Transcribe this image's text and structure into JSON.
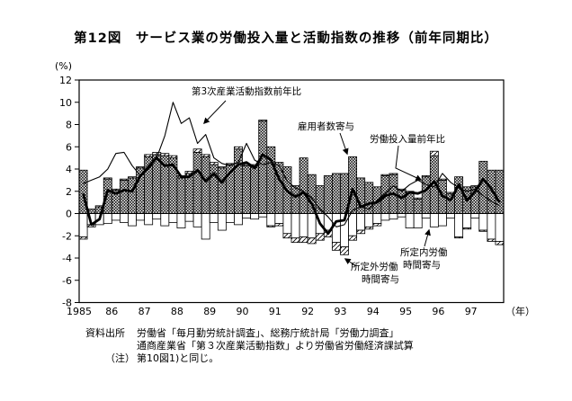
{
  "title": "第12図　サービス業の労働投入量と活動指数の推移（前年同期比）",
  "axes": {
    "y_unit": "(%)",
    "x_unit": "（年）"
  },
  "annotations": {
    "activity": "第3次産業活動指数前年比",
    "employment": "雇用者数寄与",
    "labor": "労働投入量前年比",
    "overtime_line1": "所定外労働",
    "overtime_line2": "時間寄与",
    "scheduled_line1": "所定内労働",
    "scheduled_line2": "時間寄与"
  },
  "notes": {
    "source_label": "資料出所",
    "source_line1": "労働省「毎月勤労統計調査」、総務庁統計局「労働力調査」",
    "source_line2": "通商産業省「第３次産業活動指数」より労働省労働経済課試算",
    "note_label": "（注）",
    "note_line": "第10図1)と同じ。"
  },
  "chart_data": {
    "type": "bar",
    "subtype": "stacked-quarterly-bars-with-two-line-overlays",
    "title": "サービス業の労働投入量と活動指数の推移（前年同期比）",
    "ylabel": "(%)",
    "ylim": [
      -8,
      12
    ],
    "yticks": [
      12,
      10,
      8,
      6,
      4,
      2,
      0,
      -2,
      -4,
      -6,
      -8
    ],
    "grid": false,
    "legend_position": "annotated-with-arrows-inside-plot",
    "x_year_labels": [
      "1985",
      "86",
      "87",
      "88",
      "89",
      "90",
      "91",
      "92",
      "93",
      "94",
      "95",
      "96",
      "97"
    ],
    "x_quarters": [
      "1985Q1",
      "1985Q2",
      "1985Q3",
      "1985Q4",
      "1986Q1",
      "1986Q2",
      "1986Q3",
      "1986Q4",
      "1987Q1",
      "1987Q2",
      "1987Q3",
      "1987Q4",
      "1988Q1",
      "1988Q2",
      "1988Q3",
      "1988Q4",
      "1989Q1",
      "1989Q2",
      "1989Q3",
      "1989Q4",
      "1990Q1",
      "1990Q2",
      "1990Q3",
      "1990Q4",
      "1991Q1",
      "1991Q2",
      "1991Q3",
      "1991Q4",
      "1992Q1",
      "1992Q2",
      "1992Q3",
      "1992Q4",
      "1993Q1",
      "1993Q2",
      "1993Q3",
      "1993Q4",
      "1994Q1",
      "1994Q2",
      "1994Q3",
      "1994Q4",
      "1995Q1",
      "1995Q2",
      "1995Q3",
      "1995Q4",
      "1996Q1",
      "1996Q2",
      "1996Q3",
      "1996Q4",
      "1997Q1",
      "1997Q2",
      "1997Q3",
      "1997Q4"
    ],
    "bar_series": [
      {
        "name": "雇用者数寄与",
        "pattern": "checker",
        "values": [
          3.9,
          0.4,
          0.6,
          3.1,
          2.1,
          3.0,
          3.2,
          4.1,
          5.1,
          5.3,
          5.2,
          5.0,
          3.2,
          3.6,
          5.5,
          5.1,
          4.4,
          4.1,
          4.4,
          5.8,
          4.3,
          4.3,
          8.3,
          6.0,
          4.6,
          4.2,
          2.5,
          5.0,
          3.5,
          2.5,
          3.4,
          3.6,
          3.6,
          5.1,
          3.2,
          2.8,
          2.4,
          3.4,
          3.5,
          2.1,
          1.9,
          1.3,
          3.3,
          5.2,
          3.0,
          1.8,
          3.3,
          2.4,
          2.4,
          4.7,
          3.9,
          3.9
        ]
      },
      {
        "name": "所定内労働時間寄与",
        "pattern": "plain-white",
        "values": [
          -2.1,
          -1.0,
          -1.0,
          -0.9,
          -0.6,
          -0.8,
          -1.1,
          -0.6,
          -1.0,
          -0.5,
          -1.1,
          -0.8,
          -1.3,
          -0.7,
          -1.2,
          -2.3,
          -0.8,
          -1.5,
          -0.8,
          -1.0,
          -0.4,
          -0.5,
          -0.3,
          -1.1,
          -0.9,
          -1.8,
          -2.2,
          -2.1,
          -2.2,
          -1.8,
          -1.5,
          -2.6,
          -3.0,
          -2.0,
          -1.5,
          -1.2,
          -0.9,
          -0.6,
          -0.5,
          -0.3,
          -1.3,
          -1.3,
          -0.4,
          -1.2,
          -1.1,
          -0.4,
          -2.1,
          -1.3,
          -0.4,
          -1.5,
          -2.3,
          -2.5
        ]
      },
      {
        "name": "所定外労働時間寄与",
        "pattern": "diagonal-hatch",
        "values": [
          -0.2,
          -0.2,
          0.1,
          0.1,
          0.1,
          0.1,
          0.1,
          0.1,
          0.2,
          0.2,
          0.2,
          0.2,
          0.2,
          0.2,
          0.3,
          0.2,
          0.2,
          0.1,
          0.1,
          0.2,
          0.1,
          0.1,
          0.1,
          -0.1,
          -0.2,
          -0.4,
          -0.4,
          -0.5,
          -0.5,
          -0.6,
          -0.6,
          -0.7,
          -0.7,
          -0.4,
          -0.3,
          -0.2,
          -0.2,
          0.1,
          0.1,
          0.1,
          0.1,
          0.1,
          0.1,
          0.4,
          0.1,
          0.1,
          -0.1,
          -0.1,
          0.1,
          -0.1,
          -0.2,
          -0.3
        ]
      }
    ],
    "line_series": [
      {
        "name": "第3次産業活動指数前年比",
        "style": "thin",
        "values": [
          2.7,
          3.0,
          3.3,
          4.0,
          5.4,
          5.5,
          4.3,
          3.4,
          4.0,
          5.0,
          7.0,
          10.0,
          8.1,
          8.6,
          6.3,
          7.1,
          5.0,
          4.5,
          4.3,
          4.6,
          6.3,
          4.8,
          4.4,
          4.6,
          4.3,
          2.9,
          2.3,
          2.0,
          1.4,
          0.4,
          -0.3,
          -1.2,
          -1.0,
          0.3,
          0.6,
          0.4,
          1.2,
          1.8,
          2.5,
          2.0,
          2.6,
          3.0,
          2.6,
          2.4,
          3.6,
          2.8,
          2.3,
          2.0,
          2.2,
          1.6,
          1.1,
          0.7
        ]
      },
      {
        "name": "労働投入量前年比",
        "style": "thick",
        "values": [
          1.8,
          -1.0,
          -0.5,
          2.1,
          1.8,
          2.1,
          2.0,
          3.4,
          4.2,
          5.0,
          4.3,
          4.4,
          3.3,
          3.3,
          3.9,
          2.9,
          3.6,
          2.8,
          3.7,
          4.4,
          4.6,
          4.1,
          5.3,
          4.8,
          3.1,
          2.0,
          1.5,
          1.9,
          0.9,
          -0.9,
          -1.8,
          -0.7,
          -0.6,
          2.2,
          0.6,
          0.9,
          1.0,
          1.6,
          1.8,
          1.4,
          1.9,
          1.8,
          2.1,
          2.9,
          1.6,
          1.2,
          2.6,
          1.2,
          2.0,
          3.1,
          2.2,
          1.0
        ]
      }
    ]
  }
}
